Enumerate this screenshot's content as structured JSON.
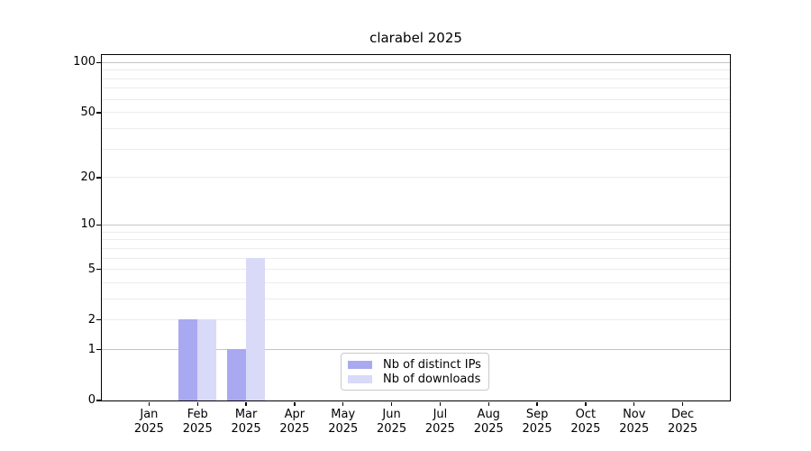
{
  "chart_data": {
    "type": "bar",
    "title": "clarabel 2025",
    "categories": [
      "Jan",
      "Feb",
      "Mar",
      "Apr",
      "May",
      "Jun",
      "Jul",
      "Aug",
      "Sep",
      "Oct",
      "Nov",
      "Dec"
    ],
    "x_tick_year": "2025",
    "series": [
      {
        "name": "Nb of distinct IPs",
        "color": "#a9a9f1",
        "values": [
          0,
          2,
          1,
          0,
          0,
          0,
          0,
          0,
          0,
          0,
          0,
          0
        ]
      },
      {
        "name": "Nb of downloads",
        "color": "#d9d9f8",
        "values": [
          0,
          2,
          6,
          0,
          0,
          0,
          0,
          0,
          0,
          0,
          0,
          0
        ]
      }
    ],
    "y_scale": "log1p",
    "ylim": [
      0,
      111
    ],
    "yticks": [
      0,
      1,
      2,
      5,
      10,
      20,
      50,
      100
    ],
    "grid": {
      "major_values": [
        1,
        10,
        100
      ],
      "minor_values": [
        2,
        3,
        4,
        5,
        6,
        7,
        8,
        9,
        20,
        30,
        40,
        50,
        60,
        70,
        80,
        90
      ],
      "major_color": "#c4c4c4",
      "minor_color": "#ececec"
    },
    "legend": {
      "position": "inside-bottom-center"
    },
    "axis_color": "#000000",
    "background_color": "#ffffff"
  }
}
